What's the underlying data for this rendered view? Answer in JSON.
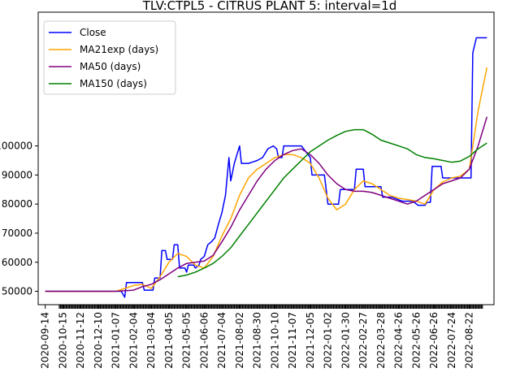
{
  "chart_data": {
    "type": "line",
    "title": "TLV:CTPL5 - CITRUS PLANT 5: interval=1d",
    "xlabel": "",
    "ylabel": "",
    "x_tick_labels": [
      "2020-09-14",
      "2020-10-15",
      "2020-11-12",
      "2020-12-10",
      "2021-01-07",
      "2021-02-04",
      "2021-03-04",
      "2021-04-05",
      "2021-05-05",
      "2021-06-06",
      "2021-07-04",
      "2021-08-02",
      "2021-08-30",
      "2021-10-10",
      "2021-11-07",
      "2021-12-05",
      "2022-01-02",
      "2022-01-30",
      "2022-02-27",
      "2022-03-28",
      "2022-04-26",
      "2022-05-26",
      "2022-06-26",
      "2022-07-24",
      "2022-08-22"
    ],
    "y_tick_labels": [
      "50000",
      "60000",
      "70000",
      "80000",
      "90000",
      "100000"
    ],
    "y_ticks": [
      650,
      700,
      750,
      800,
      850,
      900
    ],
    "ylim": [
      627,
      1130
    ],
    "xlim": [
      -0.4,
      25.4
    ],
    "grid": false,
    "legend_position": "top-left",
    "series": [
      {
        "name": "Close",
        "color": "#0000ff",
        "points": [
          [
            0,
            650
          ],
          [
            3.5,
            650
          ],
          [
            4.3,
            650
          ],
          [
            4.5,
            640
          ],
          [
            4.6,
            665
          ],
          [
            5.5,
            665
          ],
          [
            5.6,
            652
          ],
          [
            6.1,
            652
          ],
          [
            6.2,
            673
          ],
          [
            6.5,
            673
          ],
          [
            6.6,
            720
          ],
          [
            6.8,
            720
          ],
          [
            6.9,
            705
          ],
          [
            7.2,
            705
          ],
          [
            7.3,
            730
          ],
          [
            7.5,
            730
          ],
          [
            7.6,
            690
          ],
          [
            7.9,
            690
          ],
          [
            8.0,
            683
          ],
          [
            8.1,
            695
          ],
          [
            8.4,
            695
          ],
          [
            8.5,
            690
          ],
          [
            8.7,
            695
          ],
          [
            8.8,
            705
          ],
          [
            9.0,
            710
          ],
          [
            9.2,
            730
          ],
          [
            9.4,
            735
          ],
          [
            9.6,
            742
          ],
          [
            9.8,
            765
          ],
          [
            10.0,
            785
          ],
          [
            10.2,
            815
          ],
          [
            10.4,
            880
          ],
          [
            10.5,
            840
          ],
          [
            10.7,
            870
          ],
          [
            10.9,
            890
          ],
          [
            11.0,
            900
          ],
          [
            11.1,
            870
          ],
          [
            11.3,
            870
          ],
          [
            11.5,
            870
          ],
          [
            11.7,
            872
          ],
          [
            12.0,
            875
          ],
          [
            12.3,
            880
          ],
          [
            12.6,
            895
          ],
          [
            12.9,
            900
          ],
          [
            13.1,
            895
          ],
          [
            13.2,
            880
          ],
          [
            13.4,
            880
          ],
          [
            13.5,
            900
          ],
          [
            13.6,
            900
          ],
          [
            14.0,
            900
          ],
          [
            14.5,
            900
          ],
          [
            15.0,
            880
          ],
          [
            15.1,
            850
          ],
          [
            15.8,
            850
          ],
          [
            16.0,
            800
          ],
          [
            16.6,
            800
          ],
          [
            16.7,
            825
          ],
          [
            17.5,
            825
          ],
          [
            17.6,
            860
          ],
          [
            18.0,
            860
          ],
          [
            18.1,
            830
          ],
          [
            19.0,
            830
          ],
          [
            19.1,
            812
          ],
          [
            19.6,
            812
          ],
          [
            20.2,
            805
          ],
          [
            20.8,
            805
          ],
          [
            21.1,
            798
          ],
          [
            21.5,
            798
          ],
          [
            21.6,
            803
          ],
          [
            21.8,
            803
          ],
          [
            21.9,
            865
          ],
          [
            22.4,
            865
          ],
          [
            22.5,
            845
          ],
          [
            23.5,
            845
          ],
          [
            24.1,
            845
          ],
          [
            24.2,
            1060
          ],
          [
            24.4,
            1086
          ],
          [
            25.0,
            1086
          ]
        ]
      },
      {
        "name": "MA21exp (days)",
        "color": "#ffa500",
        "points": [
          [
            0,
            650
          ],
          [
            4.0,
            650
          ],
          [
            4.5,
            655
          ],
          [
            5.0,
            660
          ],
          [
            5.5,
            662
          ],
          [
            6.0,
            655
          ],
          [
            6.5,
            675
          ],
          [
            7.0,
            700
          ],
          [
            7.5,
            715
          ],
          [
            8.0,
            710
          ],
          [
            8.5,
            695
          ],
          [
            9.0,
            690
          ],
          [
            9.5,
            710
          ],
          [
            10.0,
            745
          ],
          [
            10.5,
            775
          ],
          [
            11.0,
            815
          ],
          [
            11.5,
            845
          ],
          [
            12.0,
            860
          ],
          [
            12.5,
            870
          ],
          [
            13.0,
            880
          ],
          [
            13.5,
            885
          ],
          [
            14.0,
            885
          ],
          [
            14.5,
            880
          ],
          [
            15.0,
            870
          ],
          [
            15.5,
            845
          ],
          [
            16.0,
            810
          ],
          [
            16.5,
            790
          ],
          [
            17.0,
            800
          ],
          [
            17.5,
            825
          ],
          [
            18.0,
            840
          ],
          [
            18.5,
            835
          ],
          [
            19.0,
            825
          ],
          [
            19.5,
            815
          ],
          [
            20.0,
            810
          ],
          [
            20.5,
            808
          ],
          [
            21.0,
            805
          ],
          [
            21.5,
            800
          ],
          [
            22.0,
            825
          ],
          [
            22.5,
            838
          ],
          [
            23.0,
            845
          ],
          [
            23.5,
            848
          ],
          [
            24.0,
            860
          ],
          [
            24.5,
            960
          ],
          [
            25.0,
            1035
          ]
        ]
      },
      {
        "name": "MA50 (days)",
        "color": "#800080",
        "points": [
          [
            0,
            650
          ],
          [
            4.0,
            650
          ],
          [
            5.0,
            652
          ],
          [
            5.5,
            658
          ],
          [
            6.0,
            662
          ],
          [
            6.5,
            670
          ],
          [
            7.0,
            680
          ],
          [
            7.5,
            690
          ],
          [
            8.0,
            698
          ],
          [
            8.5,
            700
          ],
          [
            9.0,
            702
          ],
          [
            9.5,
            712
          ],
          [
            10.0,
            735
          ],
          [
            10.5,
            760
          ],
          [
            11.0,
            790
          ],
          [
            11.5,
            815
          ],
          [
            12.0,
            840
          ],
          [
            12.5,
            860
          ],
          [
            13.0,
            875
          ],
          [
            13.5,
            885
          ],
          [
            14.0,
            892
          ],
          [
            14.5,
            895
          ],
          [
            15.0,
            885
          ],
          [
            15.5,
            870
          ],
          [
            16.0,
            850
          ],
          [
            16.5,
            835
          ],
          [
            17.0,
            825
          ],
          [
            17.5,
            822
          ],
          [
            18.0,
            822
          ],
          [
            18.5,
            820
          ],
          [
            19.0,
            815
          ],
          [
            19.5,
            810
          ],
          [
            20.0,
            805
          ],
          [
            20.5,
            800
          ],
          [
            21.0,
            805
          ],
          [
            21.5,
            815
          ],
          [
            22.0,
            825
          ],
          [
            22.5,
            835
          ],
          [
            23.0,
            840
          ],
          [
            23.5,
            845
          ],
          [
            24.0,
            860
          ],
          [
            24.5,
            900
          ],
          [
            25.0,
            950
          ]
        ]
      },
      {
        "name": "MA150 (days)",
        "color": "#008000",
        "points": [
          [
            7.5,
            675
          ],
          [
            8.0,
            678
          ],
          [
            8.5,
            683
          ],
          [
            9.0,
            690
          ],
          [
            9.5,
            698
          ],
          [
            10.0,
            710
          ],
          [
            10.5,
            725
          ],
          [
            11.0,
            745
          ],
          [
            11.5,
            765
          ],
          [
            12.0,
            785
          ],
          [
            12.5,
            805
          ],
          [
            13.0,
            825
          ],
          [
            13.5,
            845
          ],
          [
            14.0,
            860
          ],
          [
            14.5,
            875
          ],
          [
            15.0,
            890
          ],
          [
            15.5,
            900
          ],
          [
            16.0,
            910
          ],
          [
            16.5,
            918
          ],
          [
            17.0,
            925
          ],
          [
            17.5,
            928
          ],
          [
            18.0,
            928
          ],
          [
            18.5,
            920
          ],
          [
            19.0,
            910
          ],
          [
            19.5,
            905
          ],
          [
            20.0,
            900
          ],
          [
            20.5,
            895
          ],
          [
            21.0,
            885
          ],
          [
            21.5,
            880
          ],
          [
            22.0,
            878
          ],
          [
            22.5,
            875
          ],
          [
            23.0,
            872
          ],
          [
            23.5,
            874
          ],
          [
            24.0,
            882
          ],
          [
            24.5,
            895
          ],
          [
            25.0,
            905
          ]
        ]
      }
    ]
  }
}
